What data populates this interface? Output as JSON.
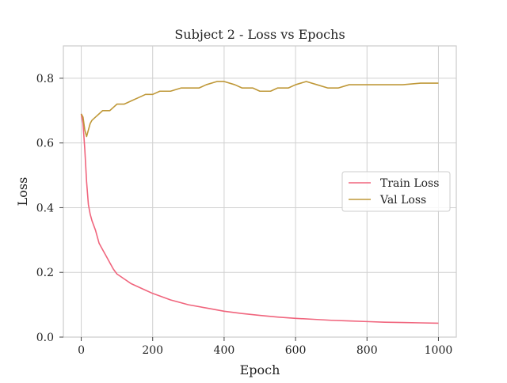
{
  "chart_data": {
    "type": "line",
    "title": "Subject 2 - Loss vs Epochs",
    "xlabel": "Epoch",
    "ylabel": "Loss",
    "xlim": [
      -50,
      1050
    ],
    "ylim": [
      0.0,
      0.9
    ],
    "xticks": [
      0,
      200,
      400,
      600,
      800,
      1000
    ],
    "yticks": [
      0.0,
      0.2,
      0.4,
      0.6,
      0.8
    ],
    "xtick_labels": [
      "0",
      "200",
      "400",
      "600",
      "800",
      "1000"
    ],
    "ytick_labels": [
      "0.0",
      "0.2",
      "0.4",
      "0.6",
      "0.8"
    ],
    "grid": true,
    "legend": "center-right",
    "series": [
      {
        "name": "Train Loss",
        "color": "#f0657d",
        "x": [
          0,
          5,
          10,
          15,
          20,
          25,
          30,
          40,
          50,
          60,
          70,
          80,
          90,
          100,
          120,
          140,
          160,
          180,
          200,
          250,
          300,
          350,
          400,
          450,
          500,
          550,
          600,
          650,
          700,
          750,
          800,
          850,
          900,
          950,
          1000
        ],
        "values": [
          0.69,
          0.66,
          0.58,
          0.48,
          0.41,
          0.38,
          0.36,
          0.33,
          0.29,
          0.27,
          0.25,
          0.23,
          0.21,
          0.195,
          0.18,
          0.165,
          0.155,
          0.145,
          0.135,
          0.115,
          0.1,
          0.09,
          0.08,
          0.073,
          0.067,
          0.062,
          0.058,
          0.055,
          0.052,
          0.05,
          0.048,
          0.046,
          0.045,
          0.044,
          0.043
        ]
      },
      {
        "name": "Val Loss",
        "color": "#bf9838",
        "x": [
          0,
          5,
          10,
          15,
          20,
          25,
          30,
          40,
          50,
          60,
          70,
          80,
          90,
          100,
          120,
          140,
          160,
          180,
          200,
          220,
          250,
          280,
          300,
          330,
          350,
          380,
          400,
          430,
          450,
          480,
          500,
          530,
          550,
          580,
          600,
          630,
          660,
          690,
          720,
          750,
          780,
          800,
          850,
          900,
          950,
          1000
        ],
        "values": [
          0.69,
          0.68,
          0.64,
          0.62,
          0.64,
          0.66,
          0.67,
          0.68,
          0.69,
          0.7,
          0.7,
          0.7,
          0.71,
          0.72,
          0.72,
          0.73,
          0.74,
          0.75,
          0.75,
          0.76,
          0.76,
          0.77,
          0.77,
          0.77,
          0.78,
          0.79,
          0.79,
          0.78,
          0.77,
          0.77,
          0.76,
          0.76,
          0.77,
          0.77,
          0.78,
          0.79,
          0.78,
          0.77,
          0.77,
          0.78,
          0.78,
          0.78,
          0.78,
          0.78,
          0.785,
          0.785
        ]
      }
    ]
  }
}
